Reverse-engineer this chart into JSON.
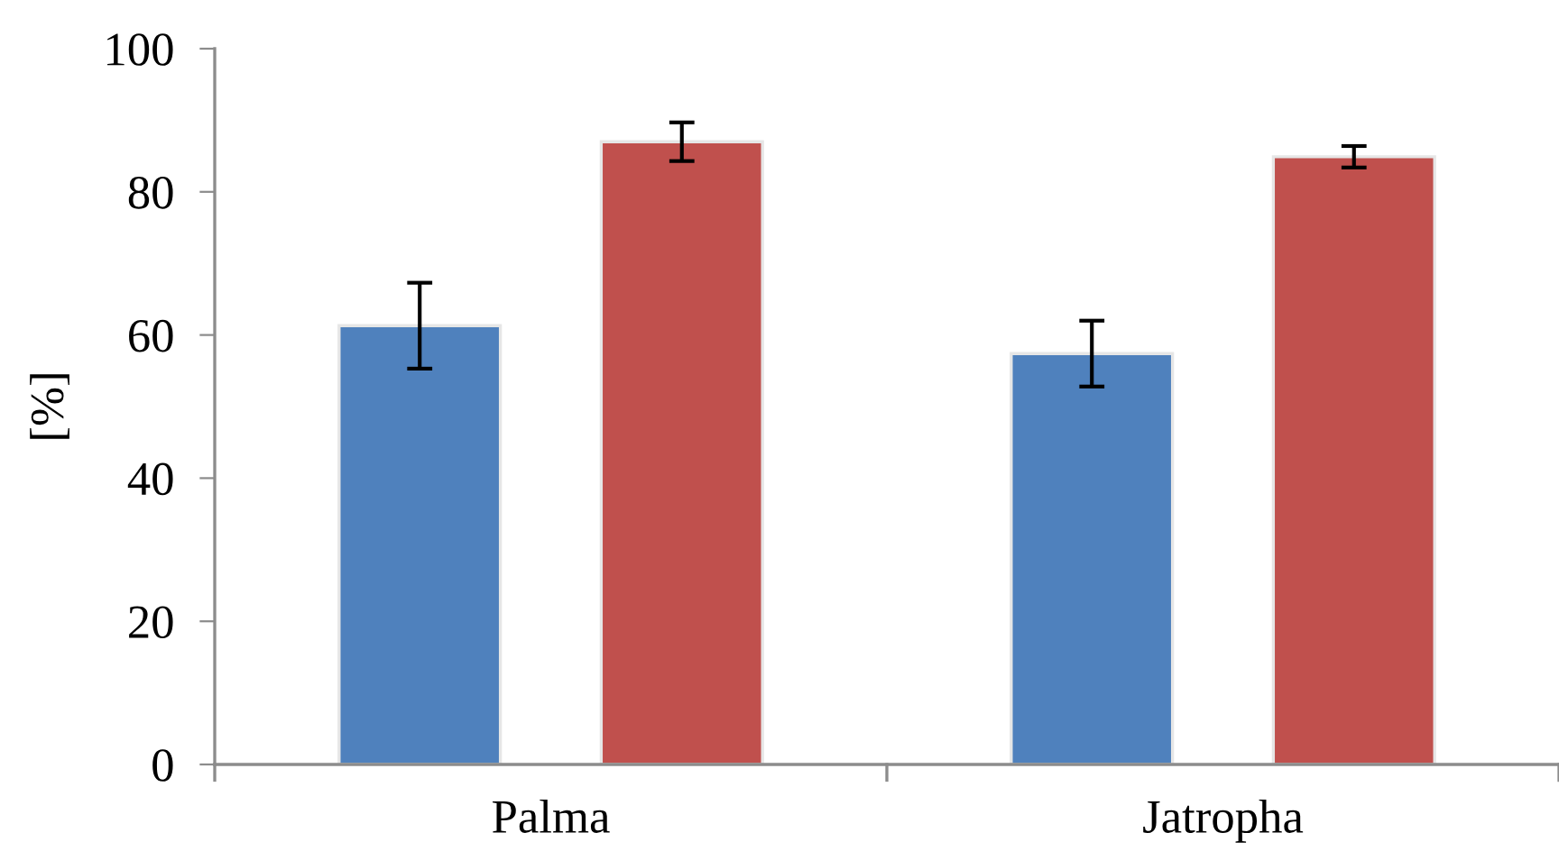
{
  "chart_data": {
    "type": "bar",
    "ylabel": "[%]",
    "categories": [
      "Palma",
      "Jatropha"
    ],
    "series": [
      {
        "color": "#4f81bd",
        "values": [
          61.3,
          57.4
        ],
        "errors": [
          6,
          4.6
        ]
      },
      {
        "color": "#c0504d",
        "values": [
          87.0,
          84.9
        ],
        "errors": [
          2.7,
          1.5
        ]
      }
    ],
    "ylim": [
      0,
      100
    ],
    "yticks": [
      0,
      20,
      40,
      60,
      80,
      100
    ],
    "grid": false,
    "legend": false
  }
}
